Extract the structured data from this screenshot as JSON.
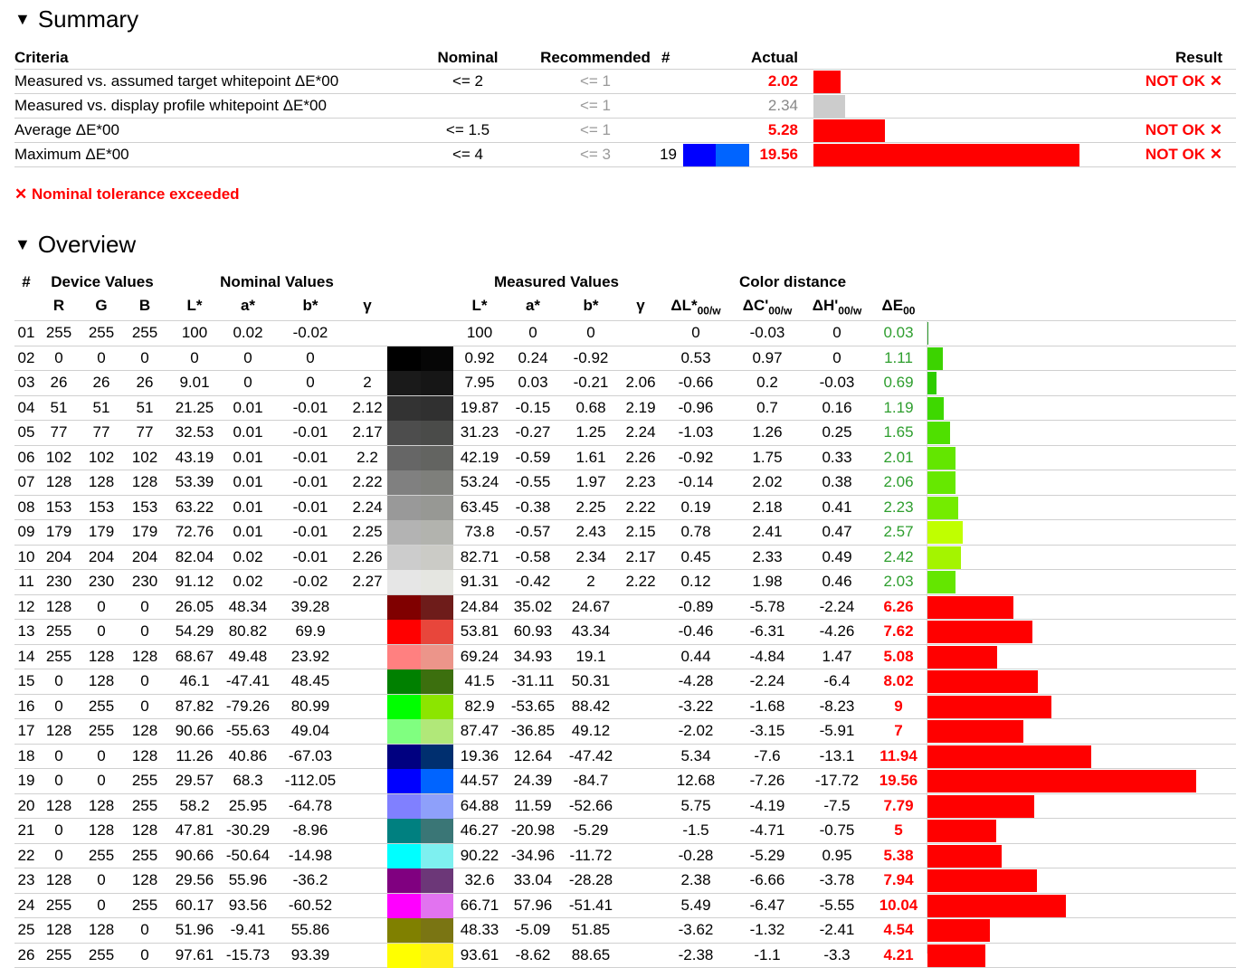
{
  "summary": {
    "title": "Summary",
    "headers": {
      "criteria": "Criteria",
      "nominal": "Nominal",
      "recommended": "Recommended",
      "count": "#",
      "actual": "Actual",
      "result": "Result"
    },
    "rows": [
      {
        "criteria": "Measured vs. assumed target whitepoint ΔE*00",
        "nominal": "<= 2",
        "recommended": "<= 1",
        "count": "",
        "actual": "2.02",
        "actual_status": "bad",
        "result": "NOT OK ✕",
        "bar_value": 2.02,
        "bar_color": "#ff0000"
      },
      {
        "criteria": "Measured vs. display profile whitepoint ΔE*00",
        "nominal": "",
        "recommended": "<= 1",
        "count": "",
        "actual": "2.34",
        "actual_status": "neutral",
        "result": "",
        "bar_value": 2.34,
        "bar_color": "#cccccc"
      },
      {
        "criteria": "Average ΔE*00",
        "nominal": "<= 1.5",
        "recommended": "<= 1",
        "count": "",
        "actual": "5.28",
        "actual_status": "bad",
        "result": "NOT OK ✕",
        "bar_value": 5.28,
        "bar_color": "#ff0000"
      },
      {
        "criteria": "Maximum ΔE*00",
        "nominal": "<= 4",
        "recommended": "<= 3",
        "count": "19",
        "swatch_colors": [
          "#0000ff",
          "#0064ff"
        ],
        "actual": "19.56",
        "actual_status": "bad",
        "result": "NOT OK ✕",
        "bar_value": 19.56,
        "bar_color": "#ff0000"
      }
    ],
    "warning": "✕ Nominal tolerance exceeded"
  },
  "overview": {
    "title": "Overview",
    "group_headers": {
      "id": "#",
      "device": "Device Values",
      "nominal": "Nominal Values",
      "measured": "Measured Values",
      "distance": "Color distance"
    },
    "col_headers": {
      "r": "R",
      "g": "G",
      "b": "B",
      "l": "L*",
      "a": "a*",
      "bb": "b*",
      "gamma": "γ",
      "ml": "L*",
      "ma": "a*",
      "mb": "b*",
      "mg": "γ",
      "dl": "ΔL*",
      "dl_sub": "00/w",
      "dc": "ΔC'",
      "dc_sub": "00/w",
      "dh": "ΔH'",
      "dh_sub": "00/w",
      "de": "ΔE",
      "de_sub": "00"
    },
    "rows": [
      {
        "id": "01",
        "r": "255",
        "g": "255",
        "b": "255",
        "l": "100",
        "a": "0.02",
        "bb": "-0.02",
        "gamma": "",
        "c1": "#ffffff",
        "c2": "#ffffff",
        "ml": "100",
        "ma": "0",
        "mb": "0",
        "mg": "",
        "dl": "0",
        "dc": "-0.03",
        "dh": "0",
        "de": "0.03",
        "status": "ok",
        "bar": "#2e9e2e"
      },
      {
        "id": "02",
        "r": "0",
        "g": "0",
        "b": "0",
        "l": "0",
        "a": "0",
        "bb": "0",
        "gamma": "",
        "c1": "#000000",
        "c2": "#060606",
        "ml": "0.92",
        "ma": "0.24",
        "mb": "-0.92",
        "mg": "",
        "dl": "0.53",
        "dc": "0.97",
        "dh": "0",
        "de": "1.11",
        "status": "ok",
        "bar": "#3cd300"
      },
      {
        "id": "03",
        "r": "26",
        "g": "26",
        "b": "26",
        "l": "9.01",
        "a": "0",
        "bb": "0",
        "gamma": "2",
        "c1": "#1a1a1a",
        "c2": "#161616",
        "ml": "7.95",
        "ma": "0.03",
        "mb": "-0.21",
        "mg": "2.06",
        "dl": "-0.66",
        "dc": "0.2",
        "dh": "-0.03",
        "de": "0.69",
        "status": "ok",
        "bar": "#2ecc00"
      },
      {
        "id": "04",
        "r": "51",
        "g": "51",
        "b": "51",
        "l": "21.25",
        "a": "0.01",
        "bb": "-0.01",
        "gamma": "2.12",
        "c1": "#333333",
        "c2": "#303030",
        "ml": "19.87",
        "ma": "-0.15",
        "mb": "0.68",
        "mg": "2.19",
        "dl": "-0.96",
        "dc": "0.7",
        "dh": "0.16",
        "de": "1.19",
        "status": "ok",
        "bar": "#3ed800"
      },
      {
        "id": "05",
        "r": "77",
        "g": "77",
        "b": "77",
        "l": "32.53",
        "a": "0.01",
        "bb": "-0.01",
        "gamma": "2.17",
        "c1": "#4d4d4d",
        "c2": "#4a4b49",
        "ml": "31.23",
        "ma": "-0.27",
        "mb": "1.25",
        "mg": "2.24",
        "dl": "-1.03",
        "dc": "1.26",
        "dh": "0.25",
        "de": "1.65",
        "status": "ok",
        "bar": "#4fe000"
      },
      {
        "id": "06",
        "r": "102",
        "g": "102",
        "b": "102",
        "l": "43.19",
        "a": "0.01",
        "bb": "-0.01",
        "gamma": "2.2",
        "c1": "#666666",
        "c2": "#636461",
        "ml": "42.19",
        "ma": "-0.59",
        "mb": "1.61",
        "mg": "2.26",
        "dl": "-0.92",
        "dc": "1.75",
        "dh": "0.33",
        "de": "2.01",
        "status": "ok",
        "bar": "#63e600"
      },
      {
        "id": "07",
        "r": "128",
        "g": "128",
        "b": "128",
        "l": "53.39",
        "a": "0.01",
        "bb": "-0.01",
        "gamma": "2.22",
        "c1": "#808080",
        "c2": "#7e7f7b",
        "ml": "53.24",
        "ma": "-0.55",
        "mb": "1.97",
        "mg": "2.23",
        "dl": "-0.14",
        "dc": "2.02",
        "dh": "0.38",
        "de": "2.06",
        "status": "ok",
        "bar": "#66e800"
      },
      {
        "id": "08",
        "r": "153",
        "g": "153",
        "b": "153",
        "l": "63.22",
        "a": "0.01",
        "bb": "-0.01",
        "gamma": "2.24",
        "c1": "#999999",
        "c2": "#979894",
        "ml": "63.45",
        "ma": "-0.38",
        "mb": "2.25",
        "mg": "2.22",
        "dl": "0.19",
        "dc": "2.18",
        "dh": "0.41",
        "de": "2.23",
        "status": "ok",
        "bar": "#74ec00"
      },
      {
        "id": "09",
        "r": "179",
        "g": "179",
        "b": "179",
        "l": "72.76",
        "a": "0.01",
        "bb": "-0.01",
        "gamma": "2.25",
        "c1": "#b3b3b3",
        "c2": "#b2b3ae",
        "ml": "73.8",
        "ma": "-0.57",
        "mb": "2.43",
        "mg": "2.15",
        "dl": "0.78",
        "dc": "2.41",
        "dh": "0.47",
        "de": "2.57",
        "status": "ok",
        "bar": "#c0ff00"
      },
      {
        "id": "10",
        "r": "204",
        "g": "204",
        "b": "204",
        "l": "82.04",
        "a": "0.02",
        "bb": "-0.01",
        "gamma": "2.26",
        "c1": "#cccccc",
        "c2": "#cbcbc6",
        "ml": "82.71",
        "ma": "-0.58",
        "mb": "2.34",
        "mg": "2.17",
        "dl": "0.45",
        "dc": "2.33",
        "dh": "0.49",
        "de": "2.42",
        "status": "ok",
        "bar": "#a4f400"
      },
      {
        "id": "11",
        "r": "230",
        "g": "230",
        "b": "230",
        "l": "91.12",
        "a": "0.02",
        "bb": "-0.02",
        "gamma": "2.27",
        "c1": "#e6e6e6",
        "c2": "#e5e6e1",
        "ml": "91.31",
        "ma": "-0.42",
        "mb": "2",
        "mg": "2.22",
        "dl": "0.12",
        "dc": "1.98",
        "dh": "0.46",
        "de": "2.03",
        "status": "ok",
        "bar": "#64e600"
      },
      {
        "id": "12",
        "r": "128",
        "g": "0",
        "b": "0",
        "l": "26.05",
        "a": "48.34",
        "bb": "39.28",
        "gamma": "",
        "c1": "#800000",
        "c2": "#6e1c1a",
        "ml": "24.84",
        "ma": "35.02",
        "mb": "24.67",
        "mg": "",
        "dl": "-0.89",
        "dc": "-5.78",
        "dh": "-2.24",
        "de": "6.26",
        "status": "bad",
        "bar": "#ff0000"
      },
      {
        "id": "13",
        "r": "255",
        "g": "0",
        "b": "0",
        "l": "54.29",
        "a": "80.82",
        "bb": "69.9",
        "gamma": "",
        "c1": "#ff0000",
        "c2": "#e8463b",
        "ml": "53.81",
        "ma": "60.93",
        "mb": "43.34",
        "mg": "",
        "dl": "-0.46",
        "dc": "-6.31",
        "dh": "-4.26",
        "de": "7.62",
        "status": "bad",
        "bar": "#ff0000"
      },
      {
        "id": "14",
        "r": "255",
        "g": "128",
        "b": "128",
        "l": "68.67",
        "a": "49.48",
        "bb": "23.92",
        "gamma": "",
        "c1": "#ff8080",
        "c2": "#ec958a",
        "ml": "69.24",
        "ma": "34.93",
        "mb": "19.1",
        "mg": "",
        "dl": "0.44",
        "dc": "-4.84",
        "dh": "1.47",
        "de": "5.08",
        "status": "bad",
        "bar": "#ff0000"
      },
      {
        "id": "15",
        "r": "0",
        "g": "128",
        "b": "0",
        "l": "46.1",
        "a": "-47.41",
        "bb": "48.45",
        "gamma": "",
        "c1": "#008000",
        "c2": "#3c6f0e",
        "ml": "41.5",
        "ma": "-31.11",
        "mb": "50.31",
        "mg": "",
        "dl": "-4.28",
        "dc": "-2.24",
        "dh": "-6.4",
        "de": "8.02",
        "status": "bad",
        "bar": "#ff0000"
      },
      {
        "id": "16",
        "r": "0",
        "g": "255",
        "b": "0",
        "l": "87.82",
        "a": "-79.26",
        "bb": "80.99",
        "gamma": "",
        "c1": "#00ff00",
        "c2": "#8ce500",
        "ml": "82.9",
        "ma": "-53.65",
        "mb": "88.42",
        "mg": "",
        "dl": "-3.22",
        "dc": "-1.68",
        "dh": "-8.23",
        "de": "9",
        "status": "bad",
        "bar": "#ff0000"
      },
      {
        "id": "17",
        "r": "128",
        "g": "255",
        "b": "128",
        "l": "90.66",
        "a": "-55.63",
        "bb": "49.04",
        "gamma": "",
        "c1": "#80ff80",
        "c2": "#b1e879",
        "ml": "87.47",
        "ma": "-36.85",
        "mb": "49.12",
        "mg": "",
        "dl": "-2.02",
        "dc": "-3.15",
        "dh": "-5.91",
        "de": "7",
        "status": "bad",
        "bar": "#ff0000"
      },
      {
        "id": "18",
        "r": "0",
        "g": "0",
        "b": "128",
        "l": "11.26",
        "a": "40.86",
        "bb": "-67.03",
        "gamma": "",
        "c1": "#000080",
        "c2": "#002f6f",
        "ml": "19.36",
        "ma": "12.64",
        "mb": "-47.42",
        "mg": "",
        "dl": "5.34",
        "dc": "-7.6",
        "dh": "-13.1",
        "de": "11.94",
        "status": "bad",
        "bar": "#ff0000"
      },
      {
        "id": "19",
        "r": "0",
        "g": "0",
        "b": "255",
        "l": "29.57",
        "a": "68.3",
        "bb": "-112.05",
        "gamma": "",
        "c1": "#0000ff",
        "c2": "#0064ff",
        "ml": "44.57",
        "ma": "24.39",
        "mb": "-84.7",
        "mg": "",
        "dl": "12.68",
        "dc": "-7.26",
        "dh": "-17.72",
        "de": "19.56",
        "status": "bad",
        "bar": "#ff0000"
      },
      {
        "id": "20",
        "r": "128",
        "g": "128",
        "b": "255",
        "l": "58.2",
        "a": "25.95",
        "bb": "-64.78",
        "gamma": "",
        "c1": "#8080ff",
        "c2": "#8ea0fa",
        "ml": "64.88",
        "ma": "11.59",
        "mb": "-52.66",
        "mg": "",
        "dl": "5.75",
        "dc": "-4.19",
        "dh": "-7.5",
        "de": "7.79",
        "status": "bad",
        "bar": "#ff0000"
      },
      {
        "id": "21",
        "r": "0",
        "g": "128",
        "b": "128",
        "l": "47.81",
        "a": "-30.29",
        "bb": "-8.96",
        "gamma": "",
        "c1": "#008080",
        "c2": "#3a7676",
        "ml": "46.27",
        "ma": "-20.98",
        "mb": "-5.29",
        "mg": "",
        "dl": "-1.5",
        "dc": "-4.71",
        "dh": "-0.75",
        "de": "5",
        "status": "bad",
        "bar": "#ff0000"
      },
      {
        "id": "22",
        "r": "0",
        "g": "255",
        "b": "255",
        "l": "90.66",
        "a": "-50.64",
        "bb": "-14.98",
        "gamma": "",
        "c1": "#00ffff",
        "c2": "#7ef0f0",
        "ml": "90.22",
        "ma": "-34.96",
        "mb": "-11.72",
        "mg": "",
        "dl": "-0.28",
        "dc": "-5.29",
        "dh": "0.95",
        "de": "5.38",
        "status": "bad",
        "bar": "#ff0000"
      },
      {
        "id": "23",
        "r": "128",
        "g": "0",
        "b": "128",
        "l": "29.56",
        "a": "55.96",
        "bb": "-36.2",
        "gamma": "",
        "c1": "#800080",
        "c2": "#6c3778",
        "ml": "32.6",
        "ma": "33.04",
        "mb": "-28.28",
        "mg": "",
        "dl": "2.38",
        "dc": "-6.66",
        "dh": "-3.78",
        "de": "7.94",
        "status": "bad",
        "bar": "#ff0000"
      },
      {
        "id": "24",
        "r": "255",
        "g": "0",
        "b": "255",
        "l": "60.17",
        "a": "93.56",
        "bb": "-60.52",
        "gamma": "",
        "c1": "#ff00ff",
        "c2": "#e273f0",
        "ml": "66.71",
        "ma": "57.96",
        "mb": "-51.41",
        "mg": "",
        "dl": "5.49",
        "dc": "-6.47",
        "dh": "-5.55",
        "de": "10.04",
        "status": "bad",
        "bar": "#ff0000"
      },
      {
        "id": "25",
        "r": "128",
        "g": "128",
        "b": "0",
        "l": "51.96",
        "a": "-9.41",
        "bb": "55.86",
        "gamma": "",
        "c1": "#808000",
        "c2": "#7a7513",
        "ml": "48.33",
        "ma": "-5.09",
        "mb": "51.85",
        "mg": "",
        "dl": "-3.62",
        "dc": "-1.32",
        "dh": "-2.41",
        "de": "4.54",
        "status": "bad",
        "bar": "#ff0000"
      },
      {
        "id": "26",
        "r": "255",
        "g": "255",
        "b": "0",
        "l": "97.61",
        "a": "-15.73",
        "bb": "93.39",
        "gamma": "",
        "c1": "#ffff00",
        "c2": "#fff01e",
        "ml": "93.61",
        "ma": "-8.62",
        "mb": "88.65",
        "mg": "",
        "dl": "-2.38",
        "dc": "-1.1",
        "dh": "-3.3",
        "de": "4.21",
        "status": "bad",
        "bar": "#ff0000"
      }
    ]
  }
}
